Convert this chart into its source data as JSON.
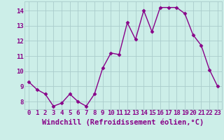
{
  "x": [
    0,
    1,
    2,
    3,
    4,
    5,
    6,
    7,
    8,
    9,
    10,
    11,
    12,
    13,
    14,
    15,
    16,
    17,
    18,
    19,
    20,
    21,
    22,
    23
  ],
  "y": [
    9.3,
    8.8,
    8.5,
    7.7,
    7.9,
    8.5,
    8.0,
    7.7,
    8.5,
    10.2,
    11.2,
    11.1,
    13.2,
    12.1,
    14.0,
    12.6,
    14.2,
    14.2,
    14.2,
    13.8,
    12.4,
    11.7,
    10.1,
    9.0
  ],
  "line_color": "#880088",
  "marker": "D",
  "marker_size": 2.5,
  "bg_color": "#cceee8",
  "grid_color": "#aacccc",
  "xlabel": "Windchill (Refroidissement éolien,°C)",
  "xlabel_fontsize": 7.5,
  "xtick_labels": [
    "0",
    "1",
    "2",
    "3",
    "4",
    "5",
    "6",
    "7",
    "8",
    "9",
    "10",
    "11",
    "12",
    "13",
    "14",
    "15",
    "16",
    "17",
    "18",
    "19",
    "20",
    "21",
    "22",
    "23"
  ],
  "ytick_labels": [
    "8",
    "9",
    "10",
    "11",
    "12",
    "13",
    "14"
  ],
  "ytick_vals": [
    8,
    9,
    10,
    11,
    12,
    13,
    14
  ],
  "ylim": [
    7.5,
    14.6
  ],
  "xlim": [
    -0.5,
    23.5
  ],
  "text_color": "#880088",
  "tick_fontsize": 6.5,
  "line_width": 1.0
}
